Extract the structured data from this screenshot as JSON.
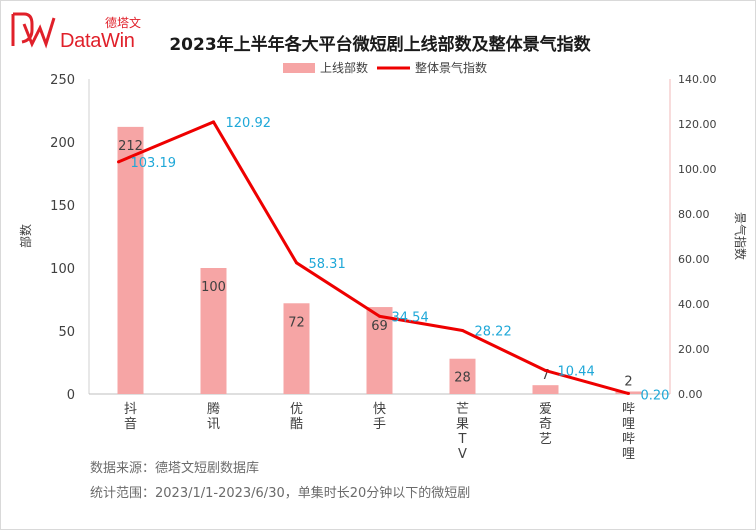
{
  "brand": {
    "cn": "德塔文",
    "en": "DataWin",
    "color": "#e0202a"
  },
  "source_line": "数据来源：德塔文短剧数据库",
  "range_line": "统计范围：2023/1/1-2023/6/30，单集时长20分钟以下的微短剧",
  "chart_data": {
    "type": "bar+line",
    "title": "2023年上半年各大平台微短剧上线部数及整体景气指数",
    "categories": [
      [
        "抖",
        "音"
      ],
      [
        "腾",
        "讯"
      ],
      [
        "优",
        "酷"
      ],
      [
        "快",
        "手"
      ],
      [
        "芒",
        "果",
        "T",
        "V"
      ],
      [
        "爱",
        "奇",
        "艺"
      ],
      [
        "哔",
        "哩",
        "哔",
        "哩"
      ]
    ],
    "series": [
      {
        "name": "上线部数",
        "kind": "bar",
        "axis": "left",
        "color": "#f6a5a5",
        "values": [
          212,
          100,
          72,
          69,
          28,
          7,
          2
        ]
      },
      {
        "name": "整体景气指数",
        "kind": "line",
        "axis": "right",
        "color": "#ee0000",
        "values": [
          103.19,
          120.92,
          58.31,
          34.54,
          28.22,
          10.44,
          0.2
        ]
      }
    ],
    "bar_labels": [
      "212",
      "100",
      "72",
      "69",
      "28",
      "7",
      "2"
    ],
    "line_labels": [
      "103.19",
      "120.92",
      "58.31",
      "34.54",
      "28.22",
      "10.44",
      "0.20"
    ],
    "line_label_color": "#1fa8d8",
    "y_left": {
      "label": "部数",
      "lim": [
        0,
        250
      ],
      "ticks": [
        "0",
        "50",
        "100",
        "150",
        "200",
        "250"
      ]
    },
    "y_right": {
      "label": "景气指数",
      "lim": [
        0,
        140
      ],
      "ticks": [
        "0.00",
        "20.00",
        "40.00",
        "60.00",
        "80.00",
        "100.00",
        "120.00",
        "140.00"
      ]
    },
    "legend_position": "top-center"
  }
}
